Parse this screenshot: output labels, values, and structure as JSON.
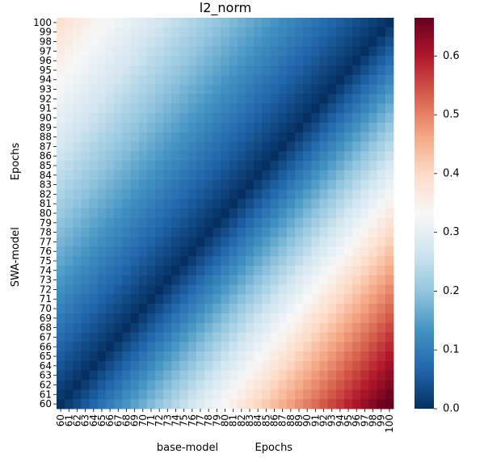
{
  "chart_data": {
    "type": "heatmap",
    "title": "l2_norm",
    "xlabel": "base-model           Epochs",
    "ylabel": "SWA-model              Epochs",
    "x_min": 60,
    "x_max": 100,
    "y_min": 60,
    "y_max": 100,
    "y_order": "descending",
    "colormap": "RdBu_r",
    "color_range": [
      0,
      0.665
    ],
    "colorbar_ticks": [
      0.0,
      0.1,
      0.2,
      0.3,
      0.4,
      0.5,
      0.6
    ],
    "colorbar_tick_labels": [
      "0.0",
      "0.1",
      "0.2",
      "0.3",
      "0.4",
      "0.5",
      "0.6"
    ],
    "values_model": {
      "description_rule": "value(x=base epoch, y=SWA epoch)",
      "below_diagonal_coef": 0.0168,
      "below_diagonal_base": 0.0025,
      "below_diagonal_ref_y": 60,
      "above_diagonal_coef": 0.0096,
      "above_diagonal_base": 0.0015,
      "above_diagonal_ref_y": 100
    },
    "value_samples": [
      {
        "x": 60,
        "y": 60,
        "value": 0.0
      },
      {
        "x": 100,
        "y": 60,
        "value": 0.665
      },
      {
        "x": 60,
        "y": 100,
        "value": 0.38
      },
      {
        "x": 80,
        "y": 80,
        "value": 0.0
      },
      {
        "x": 100,
        "y": 100,
        "value": 0.0
      }
    ]
  }
}
